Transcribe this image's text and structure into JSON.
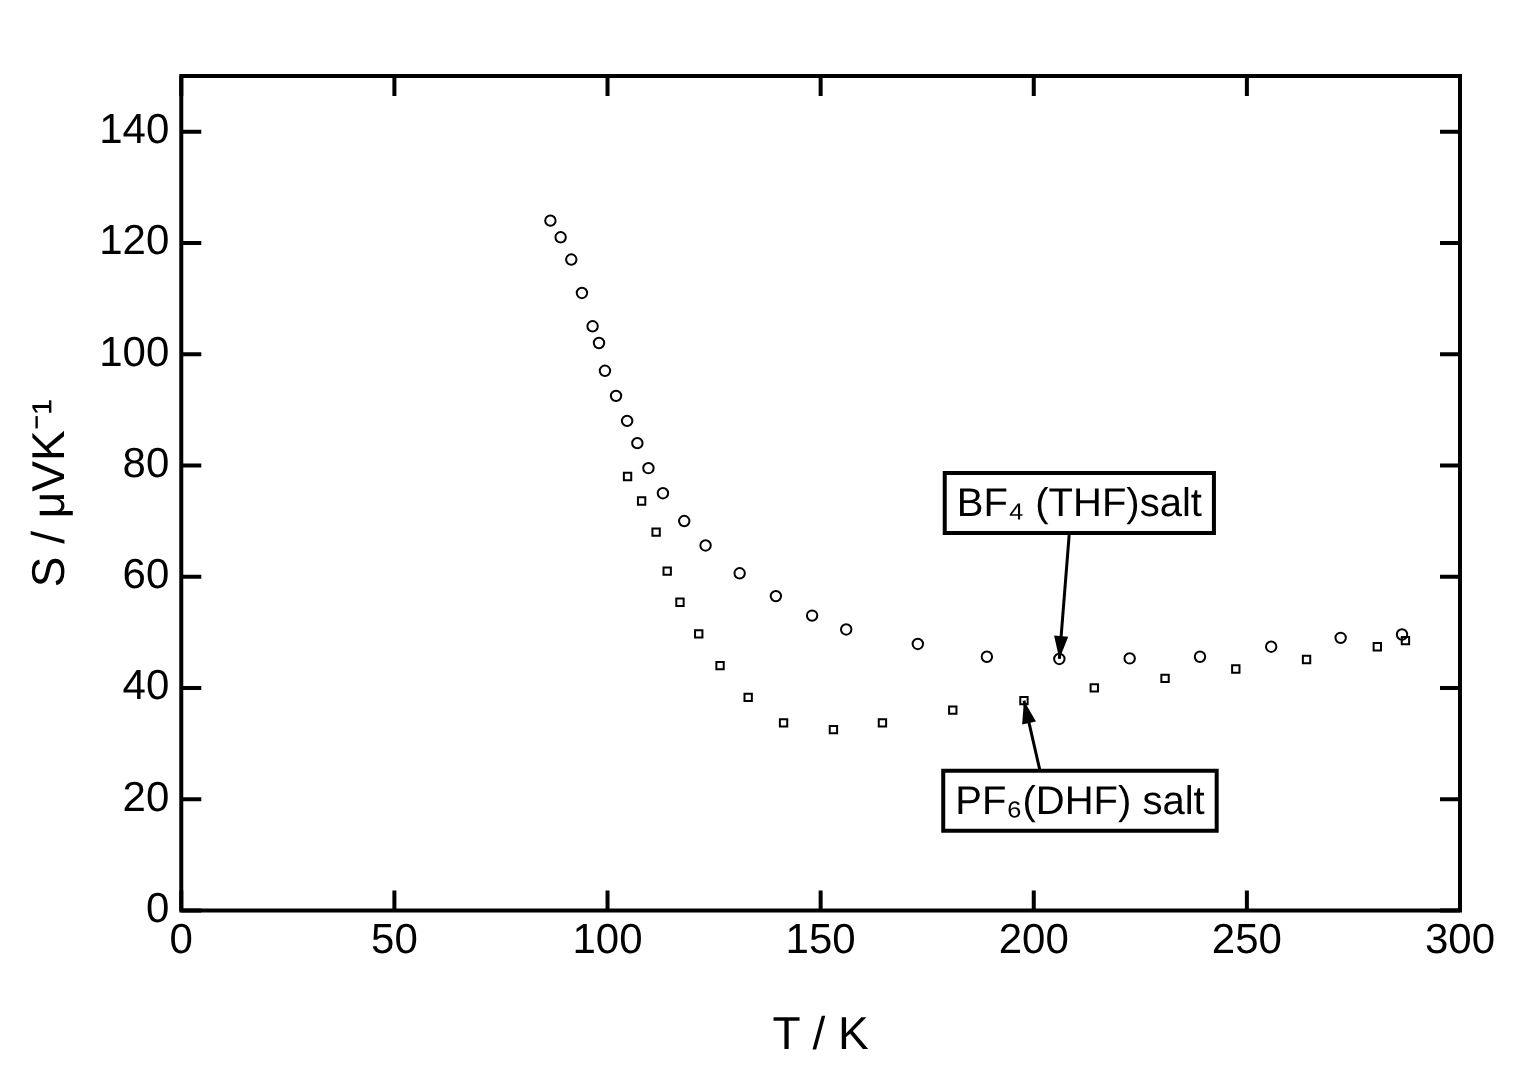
{
  "chart_data": {
    "type": "scatter",
    "xlabel": "T / K",
    "ylabel": "S / μVK⁻¹",
    "xlim": [
      0,
      300
    ],
    "xticks": [
      0,
      50,
      100,
      150,
      200,
      250,
      300
    ],
    "ylim": [
      0,
      150
    ],
    "yticks": [
      0,
      20,
      40,
      60,
      80,
      100,
      120,
      140
    ],
    "grid": false,
    "legend": false,
    "series": [
      {
        "color": "#000000",
        "marker": "circle",
        "x": [
          86.6,
          89,
          91.5,
          94,
          96.5,
          98,
          99.4,
          102,
          104.6,
          107,
          109.6,
          113,
          118,
          123,
          131,
          139.5,
          148,
          156,
          172.8,
          189,
          206,
          222.5,
          239,
          255.7,
          272,
          286.4
        ],
        "values": [
          124,
          121,
          117,
          111,
          105,
          102,
          97,
          92.5,
          88,
          84,
          79.5,
          75,
          70,
          65.6,
          60.6,
          56.5,
          53,
          50.5,
          47.9,
          45.6,
          45.2,
          45.3,
          45.6,
          47.4,
          49,
          49.6
        ]
      },
      {
        "color": "#000000",
        "marker": "square",
        "x": [
          104.7,
          108,
          111.4,
          114,
          117,
          121.4,
          126.4,
          133,
          141.3,
          153,
          164.5,
          181,
          197.7,
          214.2,
          230.8,
          247.4,
          264,
          280.6,
          287.2
        ],
        "values": [
          78,
          73.6,
          68,
          61,
          55.4,
          49.7,
          44,
          38.3,
          33.7,
          32.5,
          33.7,
          36,
          37.7,
          40,
          41.7,
          43.4,
          45.1,
          47.4,
          48.5
        ]
      }
    ],
    "annotations": [
      {
        "text": "BF₄ (THF)salt",
        "x": 206,
        "y": 45.2
      },
      {
        "text": "PF₆(DHF) salt",
        "x": 197.7,
        "y": 37.7
      }
    ]
  }
}
